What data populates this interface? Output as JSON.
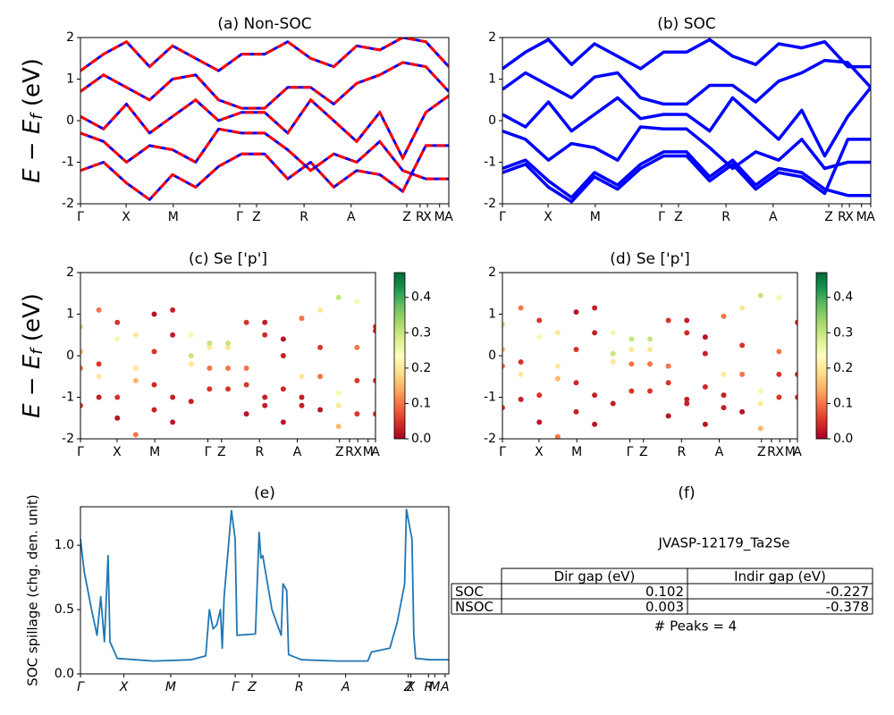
{
  "chart_data": [
    {
      "type": "line",
      "title": "(a) Non-SOC",
      "ylabel": {
        "main": "E − E",
        "sub": "f",
        "unit": " (eV)"
      },
      "color": "#0000ff",
      "dash_color": "#ff0000",
      "ylim": [
        -2,
        2
      ],
      "yticks": [
        -2,
        -1,
        0,
        1,
        2
      ],
      "xlim": [
        0,
        1
      ],
      "xticks": [
        {
          "value": 0,
          "label": "Γ"
        },
        {
          "value": 0.124,
          "label": "X"
        },
        {
          "value": 0.252,
          "label": "M"
        },
        {
          "value": 0.432,
          "label": "Γ"
        },
        {
          "value": 0.478,
          "label": "Z"
        },
        {
          "value": 0.607,
          "label": "R"
        },
        {
          "value": 0.735,
          "label": "A"
        },
        {
          "value": 0.886,
          "label": "Z"
        },
        {
          "value": 0.922,
          "label": "R"
        },
        {
          "value": 0.942,
          "label": "X"
        },
        {
          "value": 0.975,
          "label": "M"
        },
        {
          "value": 1.0,
          "label": "A"
        }
      ],
      "x": [
        0,
        0.0625,
        0.125,
        0.1875,
        0.25,
        0.3125,
        0.375,
        0.4375,
        0.5,
        0.5625,
        0.625,
        0.6875,
        0.75,
        0.8125,
        0.875,
        0.9375,
        1
      ],
      "series": [
        {
          "values": [
            -1.2,
            -1.0,
            -1.5,
            -1.9,
            -1.3,
            -1.6,
            -1.1,
            -0.8,
            -0.8,
            -1.4,
            -1.0,
            -1.6,
            -1.2,
            -1.3,
            -1.7,
            -0.6,
            -0.6
          ]
        },
        {
          "values": [
            -0.3,
            -0.5,
            -1.0,
            -0.6,
            -0.7,
            -1.0,
            -0.2,
            -0.3,
            -0.3,
            -0.7,
            -1.2,
            -0.8,
            -1.0,
            -0.5,
            -1.2,
            -1.4,
            -1.4
          ]
        },
        {
          "values": [
            0.1,
            -0.2,
            0.4,
            -0.3,
            0.1,
            0.5,
            0.0,
            0.2,
            0.2,
            -0.3,
            0.5,
            0.0,
            -0.5,
            0.2,
            -0.9,
            0.2,
            0.6
          ]
        },
        {
          "values": [
            0.7,
            1.1,
            0.8,
            0.5,
            1.0,
            1.1,
            0.5,
            0.3,
            0.3,
            0.8,
            0.8,
            0.4,
            0.9,
            1.1,
            1.4,
            1.3,
            0.7
          ]
        },
        {
          "values": [
            1.2,
            1.6,
            1.9,
            1.3,
            1.8,
            1.5,
            1.2,
            1.6,
            1.6,
            1.9,
            1.5,
            1.3,
            1.8,
            1.7,
            2.0,
            1.9,
            1.3
          ]
        }
      ]
    },
    {
      "type": "line",
      "title": "(b) SOC",
      "color": "#0000ff",
      "ylim": [
        -2,
        2
      ],
      "yticks": [
        -2,
        -1,
        0,
        1,
        2
      ],
      "xlim": [
        0,
        1
      ],
      "xticks": [
        {
          "value": 0,
          "label": "Γ"
        },
        {
          "value": 0.124,
          "label": "X"
        },
        {
          "value": 0.252,
          "label": "M"
        },
        {
          "value": 0.432,
          "label": "Γ"
        },
        {
          "value": 0.478,
          "label": "Z"
        },
        {
          "value": 0.607,
          "label": "R"
        },
        {
          "value": 0.735,
          "label": "A"
        },
        {
          "value": 0.886,
          "label": "Z"
        },
        {
          "value": 0.922,
          "label": "R"
        },
        {
          "value": 0.942,
          "label": "X"
        },
        {
          "value": 0.975,
          "label": "M"
        },
        {
          "value": 1.0,
          "label": "A"
        }
      ],
      "x": [
        0,
        0.0625,
        0.125,
        0.1875,
        0.25,
        0.3125,
        0.375,
        0.4375,
        0.5,
        0.5625,
        0.625,
        0.6875,
        0.75,
        0.8125,
        0.875,
        0.9375,
        1
      ],
      "series": [
        {
          "values": [
            -1.15,
            -0.95,
            -1.45,
            -1.85,
            -1.25,
            -1.55,
            -1.05,
            -0.75,
            -0.75,
            -1.35,
            -0.95,
            -1.55,
            -1.15,
            -1.25,
            -1.65,
            -1.8,
            -1.8
          ]
        },
        {
          "values": [
            -1.25,
            -1.05,
            -1.6,
            -1.95,
            -1.35,
            -1.65,
            -1.15,
            -0.85,
            -0.85,
            -1.45,
            -1.05,
            -1.65,
            -1.25,
            -1.35,
            -1.75,
            -0.45,
            -0.45
          ]
        },
        {
          "values": [
            -0.25,
            -0.45,
            -0.95,
            -0.55,
            -0.65,
            -0.95,
            -0.15,
            -0.2,
            -0.2,
            -0.65,
            -1.15,
            -0.75,
            -0.95,
            -0.45,
            -1.15,
            -1.0,
            -1.0
          ]
        },
        {
          "values": [
            0.15,
            -0.15,
            0.45,
            -0.25,
            0.15,
            0.55,
            0.05,
            0.15,
            0.15,
            -0.25,
            0.55,
            0.05,
            -0.45,
            0.25,
            -0.85,
            0.1,
            0.8
          ]
        },
        {
          "values": [
            0.75,
            1.15,
            0.85,
            0.55,
            1.05,
            1.15,
            0.55,
            0.4,
            0.4,
            0.85,
            0.85,
            0.45,
            0.95,
            1.15,
            1.45,
            1.4,
            0.8
          ]
        },
        {
          "values": [
            1.25,
            1.65,
            1.95,
            1.35,
            1.85,
            1.55,
            1.25,
            1.65,
            1.65,
            1.95,
            1.55,
            1.35,
            1.85,
            1.75,
            1.9,
            1.3,
            1.3
          ]
        }
      ]
    },
    {
      "type": "scatter",
      "title": "(c)  Se ['p']",
      "ylabel": {
        "main": "E − E",
        "sub": "f",
        "unit": " (eV)"
      },
      "ylim": [
        -2,
        2
      ],
      "yticks": [
        -2,
        -1,
        0,
        1,
        2
      ],
      "xlim": [
        0,
        1
      ],
      "xticks": [
        {
          "value": 0,
          "label": "Γ"
        },
        {
          "value": 0.124,
          "label": "X"
        },
        {
          "value": 0.252,
          "label": "M"
        },
        {
          "value": 0.432,
          "label": "Γ"
        },
        {
          "value": 0.478,
          "label": "Z"
        },
        {
          "value": 0.607,
          "label": "R"
        },
        {
          "value": 0.735,
          "label": "A"
        },
        {
          "value": 0.878,
          "label": "Z"
        },
        {
          "value": 0.912,
          "label": "R"
        },
        {
          "value": 0.94,
          "label": "X"
        },
        {
          "value": 0.975,
          "label": "M"
        },
        {
          "value": 1.0,
          "label": "A"
        }
      ],
      "clim": [
        0,
        0.47
      ],
      "cticks": [
        {
          "value": 0,
          "label": "0.0"
        },
        {
          "value": 0.1,
          "label": "0.1"
        },
        {
          "value": 0.2,
          "label": "0.2"
        },
        {
          "value": 0.3,
          "label": "0.3"
        },
        {
          "value": 0.4,
          "label": "0.4"
        }
      ],
      "cmap": [
        "#a50026",
        "#d73027",
        "#f46d43",
        "#fdae61",
        "#fee08b",
        "#ffffbf",
        "#d9ef8b",
        "#a6d96a",
        "#66bd63",
        "#1a9850",
        "#006837"
      ],
      "x": [
        0,
        0.0625,
        0.125,
        0.1875,
        0.25,
        0.3125,
        0.375,
        0.4375,
        0.5,
        0.5625,
        0.625,
        0.6875,
        0.75,
        0.8125,
        0.875,
        0.9375,
        1
      ],
      "series": [
        {
          "values": [
            -1.2,
            -1.0,
            -1.5,
            -1.9,
            -1.3,
            -1.6,
            -1.1,
            -0.8,
            -0.8,
            -1.4,
            -1.0,
            -1.6,
            -1.2,
            -1.3,
            -1.7,
            -0.6,
            -0.6
          ],
          "weights": [
            0.05,
            0.03,
            0.02,
            0.1,
            0.03,
            0.02,
            0.03,
            0.05,
            0.05,
            0.02,
            0.03,
            0.02,
            0.03,
            0.02,
            0.15,
            0.05,
            0.05
          ]
        },
        {
          "values": [
            -0.3,
            -0.5,
            -1.0,
            -0.6,
            -0.7,
            -1.0,
            -0.2,
            -0.3,
            -0.3,
            -0.7,
            -1.2,
            -0.8,
            -1.0,
            -0.5,
            -1.2,
            -1.4,
            -1.4
          ],
          "weights": [
            0.1,
            0.2,
            0.05,
            0.15,
            0.04,
            0.03,
            0.2,
            0.1,
            0.1,
            0.05,
            0.03,
            0.04,
            0.03,
            0.1,
            0.2,
            0.05,
            0.05
          ]
        },
        {
          "values": [
            0.1,
            -0.2,
            0.4,
            -0.3,
            0.1,
            0.5,
            0.0,
            0.2,
            0.2,
            -0.3,
            0.5,
            0.0,
            -0.5,
            0.2,
            -0.9,
            0.2,
            0.6
          ],
          "weights": [
            0.15,
            0.05,
            0.25,
            0.2,
            0.05,
            0.03,
            0.3,
            0.2,
            0.2,
            0.1,
            0.04,
            0.03,
            0.2,
            0.05,
            0.25,
            0.1,
            0.05
          ]
        },
        {
          "values": [
            0.7,
            1.1,
            0.8,
            0.5,
            1.0,
            1.1,
            0.5,
            0.3,
            0.3,
            0.8,
            0.8,
            0.4,
            0.9,
            1.1,
            1.4,
            1.3,
            0.7
          ],
          "weights": [
            0.3,
            0.1,
            0.05,
            0.2,
            0.02,
            0.03,
            0.25,
            0.3,
            0.3,
            0.05,
            0.03,
            0.02,
            0.1,
            0.2,
            0.3,
            0.25,
            0.05
          ]
        }
      ]
    },
    {
      "type": "scatter",
      "title": "(d) Se ['p']",
      "ylim": [
        -2,
        2
      ],
      "yticks": [
        -2,
        -1,
        0,
        1,
        2
      ],
      "xlim": [
        0,
        1
      ],
      "xticks": [
        {
          "value": 0,
          "label": "Γ"
        },
        {
          "value": 0.124,
          "label": "X"
        },
        {
          "value": 0.252,
          "label": "M"
        },
        {
          "value": 0.432,
          "label": "Γ"
        },
        {
          "value": 0.478,
          "label": "Z"
        },
        {
          "value": 0.607,
          "label": "R"
        },
        {
          "value": 0.735,
          "label": "A"
        },
        {
          "value": 0.878,
          "label": "Z"
        },
        {
          "value": 0.912,
          "label": "R"
        },
        {
          "value": 0.94,
          "label": "X"
        },
        {
          "value": 0.975,
          "label": "M"
        },
        {
          "value": 1.0,
          "label": "A"
        }
      ],
      "clim": [
        0,
        0.47
      ],
      "cticks": [
        {
          "value": 0,
          "label": "0.0"
        },
        {
          "value": 0.1,
          "label": "0.1"
        },
        {
          "value": 0.2,
          "label": "0.2"
        },
        {
          "value": 0.3,
          "label": "0.3"
        },
        {
          "value": 0.4,
          "label": "0.4"
        }
      ],
      "cmap": [
        "#a50026",
        "#d73027",
        "#f46d43",
        "#fdae61",
        "#fee08b",
        "#ffffbf",
        "#d9ef8b",
        "#a6d96a",
        "#66bd63",
        "#1a9850",
        "#006837"
      ],
      "x": [
        0,
        0.0625,
        0.125,
        0.1875,
        0.25,
        0.3125,
        0.375,
        0.4375,
        0.5,
        0.5625,
        0.625,
        0.6875,
        0.75,
        0.8125,
        0.875,
        0.9375,
        1
      ],
      "series": [
        {
          "values": [
            -1.25,
            -1.05,
            -1.6,
            -1.95,
            -1.35,
            -1.65,
            -1.15,
            -0.85,
            -0.85,
            -1.45,
            -1.05,
            -1.65,
            -1.25,
            -1.35,
            -1.75,
            -0.45,
            -0.45
          ],
          "weights": [
            0.05,
            0.03,
            0.02,
            0.1,
            0.03,
            0.02,
            0.03,
            0.05,
            0.05,
            0.02,
            0.03,
            0.02,
            0.03,
            0.02,
            0.15,
            0.05,
            0.05
          ]
        },
        {
          "values": [
            -0.25,
            -0.45,
            -0.95,
            -0.55,
            -0.65,
            -0.95,
            -0.15,
            -0.2,
            -0.2,
            -0.65,
            -1.15,
            -0.75,
            -0.95,
            -0.45,
            -1.15,
            -1.0,
            -1.0
          ],
          "weights": [
            0.1,
            0.2,
            0.05,
            0.15,
            0.04,
            0.03,
            0.2,
            0.1,
            0.1,
            0.05,
            0.03,
            0.04,
            0.03,
            0.1,
            0.2,
            0.05,
            0.05
          ]
        },
        {
          "values": [
            0.15,
            -0.15,
            0.45,
            -0.25,
            0.15,
            0.55,
            0.05,
            0.15,
            0.15,
            -0.25,
            0.55,
            0.05,
            -0.45,
            0.25,
            -0.85,
            0.1,
            0.8
          ],
          "weights": [
            0.15,
            0.05,
            0.25,
            0.2,
            0.05,
            0.03,
            0.3,
            0.2,
            0.2,
            0.1,
            0.04,
            0.03,
            0.2,
            0.05,
            0.25,
            0.1,
            0.05
          ]
        },
        {
          "values": [
            0.75,
            1.15,
            0.85,
            0.55,
            1.05,
            1.15,
            0.55,
            0.4,
            0.4,
            0.85,
            0.85,
            0.45,
            0.95,
            1.15,
            1.45,
            1.4,
            0.8
          ],
          "weights": [
            0.3,
            0.1,
            0.05,
            0.2,
            0.02,
            0.03,
            0.25,
            0.3,
            0.3,
            0.05,
            0.03,
            0.02,
            0.1,
            0.2,
            0.3,
            0.25,
            0.05
          ]
        }
      ]
    },
    {
      "type": "line",
      "title": "(e)",
      "ylabel_text": "SOC spillage (chg. den. unit)",
      "color": "#1f77b4",
      "italic_x": true,
      "ylim": [
        0,
        1.3
      ],
      "yticks": [
        {
          "value": 0,
          "label": "0.0"
        },
        {
          "value": 0.5,
          "label": "0.5"
        },
        {
          "value": 1.0,
          "label": "1.0"
        }
      ],
      "xlim": [
        0,
        1
      ],
      "xticks": [
        {
          "value": 0,
          "label": "Γ"
        },
        {
          "value": 0.118,
          "label": "X"
        },
        {
          "value": 0.245,
          "label": "M"
        },
        {
          "value": 0.42,
          "label": "Γ"
        },
        {
          "value": 0.466,
          "label": "Z"
        },
        {
          "value": 0.594,
          "label": "R"
        },
        {
          "value": 0.72,
          "label": "A"
        },
        {
          "value": 0.89,
          "label": "Z"
        },
        {
          "value": 0.897,
          "label": "X"
        },
        {
          "value": 0.945,
          "label": "R"
        },
        {
          "value": 0.962,
          "label": "M"
        },
        {
          "value": 0.99,
          "label": "A"
        }
      ],
      "x": [
        0,
        0.01,
        0.03,
        0.045,
        0.055,
        0.065,
        0.075,
        0.08,
        0.1,
        0.15,
        0.2,
        0.3,
        0.34,
        0.35,
        0.36,
        0.37,
        0.38,
        0.385,
        0.39,
        0.41,
        0.42,
        0.425,
        0.475,
        0.485,
        0.49,
        0.495,
        0.52,
        0.545,
        0.55,
        0.56,
        0.565,
        0.6,
        0.7,
        0.78,
        0.79,
        0.84,
        0.86,
        0.88,
        0.885,
        0.9,
        0.905,
        0.91,
        0.95,
        1
      ],
      "series": [
        {
          "values": [
            1.05,
            0.8,
            0.5,
            0.3,
            0.6,
            0.25,
            0.92,
            0.25,
            0.12,
            0.11,
            0.1,
            0.11,
            0.14,
            0.5,
            0.35,
            0.38,
            0.5,
            0.2,
            0.6,
            1.27,
            1.05,
            0.3,
            0.31,
            1.1,
            0.9,
            0.92,
            0.5,
            0.3,
            0.7,
            0.65,
            0.15,
            0.11,
            0.1,
            0.1,
            0.17,
            0.2,
            0.4,
            0.7,
            1.28,
            1.05,
            0.3,
            0.12,
            0.11,
            0.11
          ]
        }
      ]
    },
    {
      "type": "table",
      "title": "(f)",
      "caption": "JVASP-12179_Ta2Se",
      "columns": [
        "Dir gap (eV)",
        "Indir gap (eV)"
      ],
      "rows": [
        [
          "SOC",
          "0.102",
          "-0.227"
        ],
        [
          "NSOC",
          "0.003",
          "-0.378"
        ]
      ],
      "footer": "# Peaks = 4"
    }
  ]
}
